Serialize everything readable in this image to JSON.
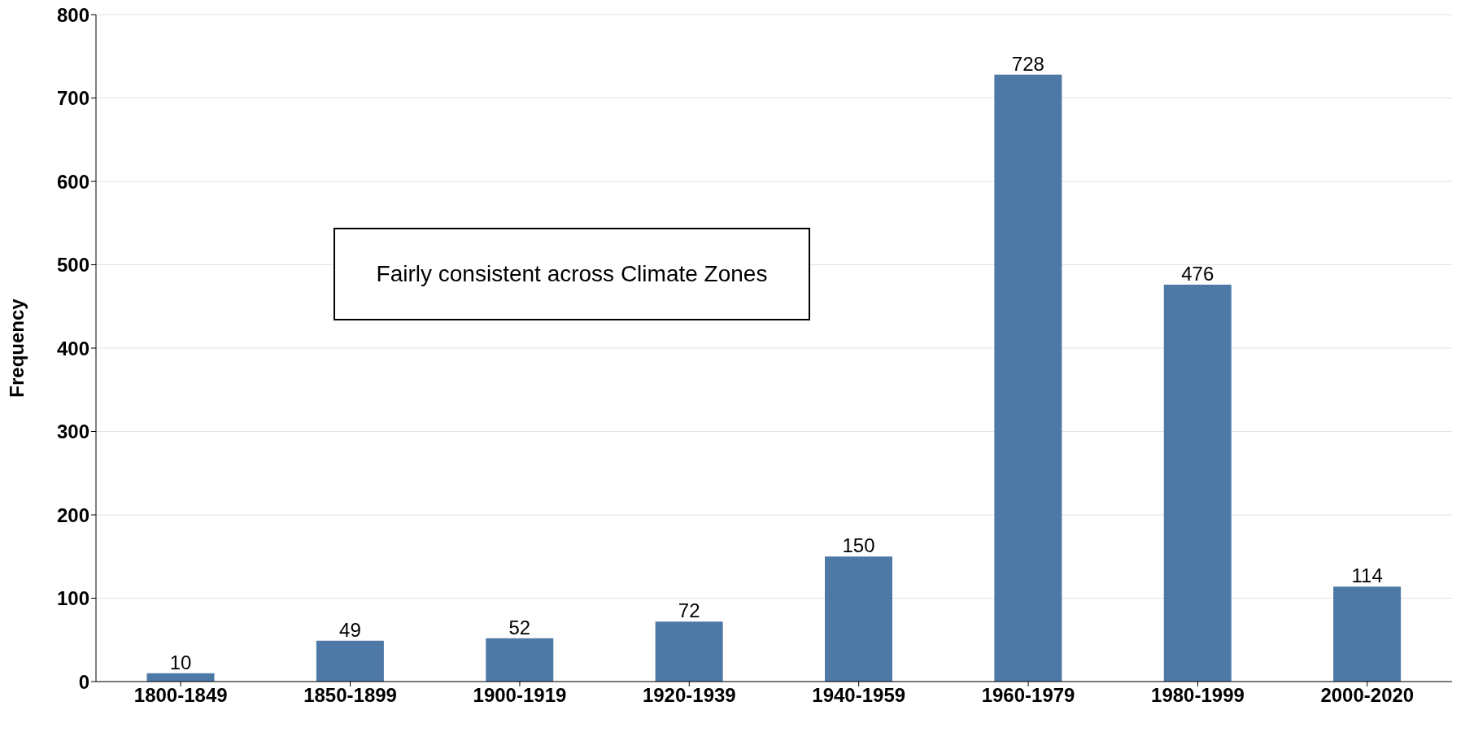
{
  "chart_data": {
    "type": "bar",
    "ylabel": "Frequency",
    "categories": [
      "1800-1849",
      "1850-1899",
      "1900-1919",
      "1920-1939",
      "1940-1959",
      "1960-1979",
      "1980-1999",
      "2000-2020"
    ],
    "values": [
      10,
      49,
      52,
      72,
      150,
      728,
      476,
      114
    ],
    "color": "#4e79a7",
    "ylim": [
      0,
      800
    ],
    "yticks": [
      0,
      100,
      200,
      300,
      400,
      500,
      600,
      700,
      800
    ],
    "grid": "y",
    "data_labels": true,
    "legend": false,
    "annotations": [
      "Fairly consistent across Climate Zones"
    ]
  }
}
